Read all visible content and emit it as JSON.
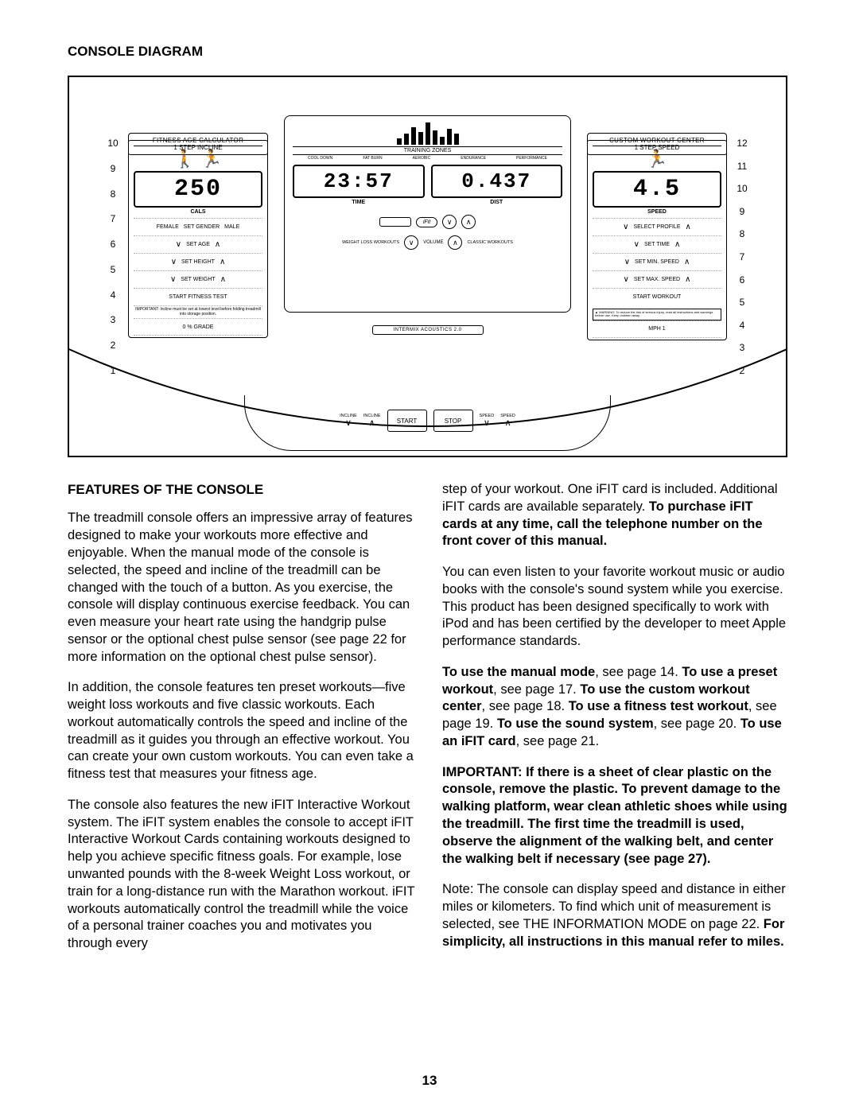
{
  "title": "CONSOLE DIAGRAM",
  "pageNumber": "13",
  "diagram": {
    "left": {
      "header": "FITNESS AGE CALCULATOR",
      "displayValue": "250",
      "displayLabel": "CALS",
      "genderRow": [
        "FEMALE",
        "SET GENDER",
        "MALE"
      ],
      "setRows": [
        "SET AGE",
        "SET HEIGHT",
        "SET WEIGHT"
      ],
      "startTest": "START FITNESS TEST",
      "important": "IMPORTANT: Incline must be set at lowest level before folding treadmill into storage position.",
      "zeroLabel": "0  % GRADE",
      "footer": "1 STEP INCLINE",
      "numbers": [
        "10",
        "9",
        "8",
        "7",
        "6",
        "5",
        "4",
        "3",
        "2",
        "1"
      ]
    },
    "right": {
      "header": "CUSTOM WORKOUT CENTER",
      "displayValue": "4.5",
      "displayLabel": "SPEED",
      "setRows": [
        "SELECT PROFILE",
        "SET TIME",
        "SET MIN. SPEED",
        "SET MAX. SPEED"
      ],
      "startWorkout": "START WORKOUT",
      "warning": "▲ WARNING: To reduce the risk of serious injury, read all instructions and warnings before use. Keep children away.",
      "mphLabel": "MPH  1",
      "footer": "1 STEP SPEED",
      "numbers": [
        "12",
        "11",
        "10",
        "9",
        "8",
        "7",
        "6",
        "5",
        "4",
        "3",
        "2"
      ]
    },
    "center": {
      "tzHead": "TRAINING ZONES",
      "tzSub": [
        "COOL DOWN",
        "FAT BURN",
        "AEROBIC",
        "ENDURANCE",
        "PERFORMANCE"
      ],
      "timeVal": "23:57",
      "timeLabel": "TIME",
      "distVal": "0.437",
      "distLabel": "DIST",
      "ifit": "iFit",
      "weightLoss": "WEIGHT LOSS WORKOUTS",
      "volume": "VOLUME",
      "classic": "CLASSIC WORKOUTS",
      "mpBar": "INTERMIX ACOUSTICS 2.0",
      "bottomIncline": "INCLINE",
      "bottomStart": "START",
      "bottomStop": "STOP",
      "bottomSpeed": "SPEED"
    },
    "eqHeights": [
      8,
      14,
      22,
      16,
      28,
      18,
      10,
      20,
      14
    ]
  },
  "features": {
    "heading": "FEATURES OF THE CONSOLE",
    "p1": "The treadmill console offers an impressive array of features designed to make your workouts more effective and enjoyable. When the manual mode of the console is selected, the speed and incline of the treadmill can be changed with the touch of a button. As you exercise, the console will display continuous exercise feedback. You can even measure your heart rate using the handgrip pulse sensor or the optional chest pulse sensor (see page 22 for more information on the optional chest pulse sensor).",
    "p2": "In addition, the console features ten preset workouts—five weight loss workouts and five classic workouts. Each workout automatically controls the speed and incline of the treadmill as it guides you through an effective workout. You can create your own custom workouts. You can even take a fitness test that measures your fitness age.",
    "p3": "The console also features the new iFIT Interactive Workout system. The iFIT system enables the console to accept iFIT Interactive Workout Cards containing workouts designed to help you achieve specific fitness goals. For example, lose unwanted pounds with the 8-week Weight Loss workout, or train for a long-distance run with the Marathon workout. iFIT workouts automatically control the treadmill while the voice of a personal trainer coaches you and motivates you through every",
    "r1a": "step of your workout. One iFIT card is included. Additional iFIT cards are available separately. ",
    "r1b": "To purchase iFIT cards at any time, call the telephone number on the front cover of this manual.",
    "r2": "You can even listen to your favorite workout music or audio books with the console's sound system while you exercise. This product has been designed specifically to work with iPod and has been certified by the developer to meet Apple performance standards.",
    "r3_1": "To use the manual mode",
    "r3_2": ", see page 14. ",
    "r3_3": "To use a preset workout",
    "r3_4": ", see page 17. ",
    "r3_5": "To use the custom workout center",
    "r3_6": ", see page 18. ",
    "r3_7": "To use a fitness test workout",
    "r3_8": ", see page 19. ",
    "r3_9": "To use the sound system",
    "r3_10": ", see page 20. ",
    "r3_11": "To use an iFIT card",
    "r3_12": ", see page 21.",
    "r4": "IMPORTANT: If there is a sheet of clear plastic on the console, remove the plastic. To prevent damage to the walking platform, wear clean athletic shoes while using the treadmill. The first time the treadmill is used, observe the alignment of the walking belt, and center the walking belt if necessary (see page 27).",
    "r5a": "Note: The console can display speed and distance in either miles or kilometers. To find which unit of measurement is selected, see THE INFORMATION MODE on page 22. ",
    "r5b": "For simplicity, all instructions in this manual refer to miles."
  }
}
